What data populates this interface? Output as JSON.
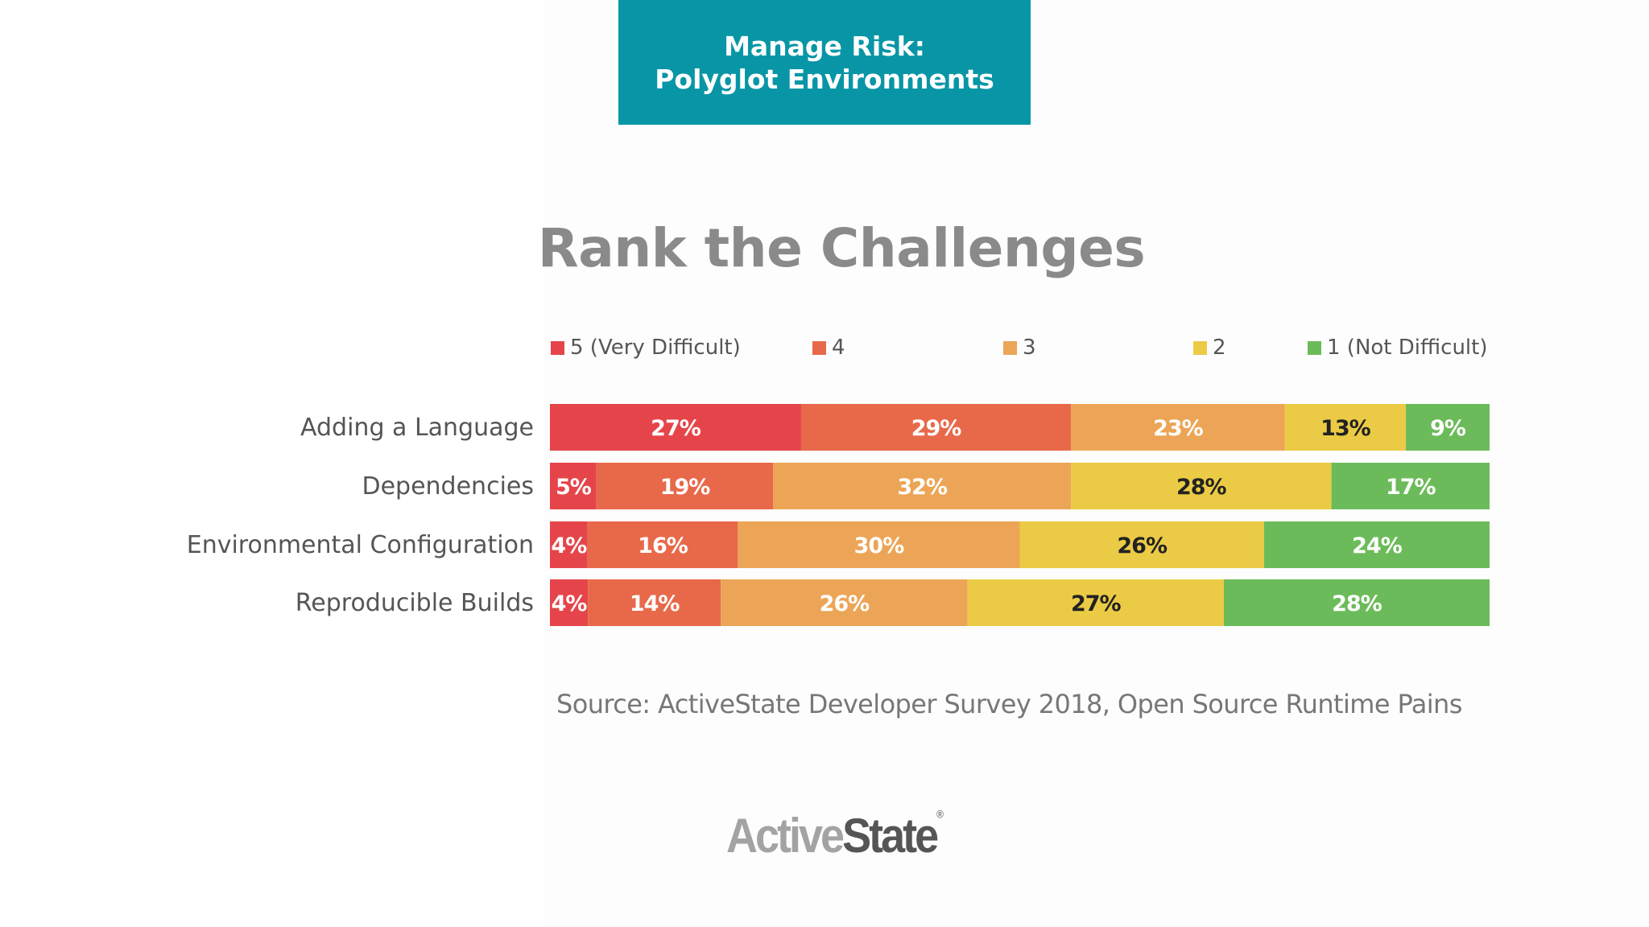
{
  "header": {
    "line1": "Manage Risk:",
    "line2": "Polyglot Environments",
    "background": "#0896a6"
  },
  "chart_data": {
    "type": "bar",
    "orientation": "horizontal",
    "stacked": true,
    "title": "Rank the Challenges",
    "categories": [
      "Adding a Language",
      "Dependencies",
      "Environmental Configuration",
      "Reproducible Builds"
    ],
    "series": [
      {
        "name": "5 (Very Difficult)",
        "color": "#e5454a",
        "values": [
          27,
          5,
          4,
          4
        ]
      },
      {
        "name": "4",
        "color": "#e8694a",
        "values": [
          29,
          19,
          16,
          14
        ]
      },
      {
        "name": "3",
        "color": "#eca556",
        "values": [
          23,
          32,
          30,
          26
        ]
      },
      {
        "name": "2",
        "color": "#ebcb45",
        "values": [
          13,
          28,
          26,
          27
        ]
      },
      {
        "name": "1 (Not Difficult)",
        "color": "#6cbb5a",
        "values": [
          9,
          17,
          24,
          28
        ]
      }
    ],
    "value_suffix": "%",
    "legend_position": "top",
    "grid": false
  },
  "source": "Source: ActiveState Developer Survey 2018, Open Source Runtime Pains",
  "logo": {
    "part1": "Active",
    "part2": "State",
    "mark": "®"
  }
}
